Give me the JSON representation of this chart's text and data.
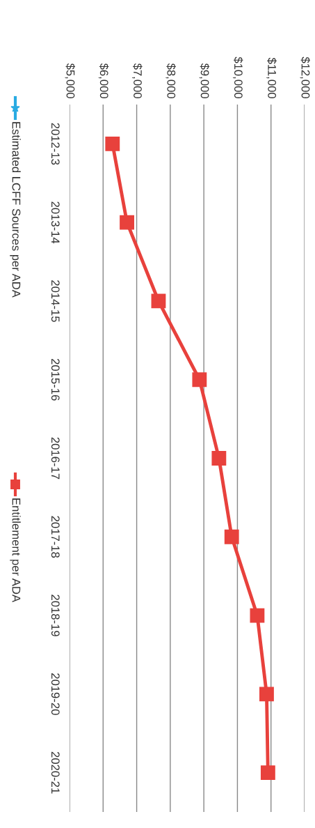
{
  "chart_data": {
    "type": "line",
    "orientation": "horizontal",
    "categories": [
      "2012-13",
      "2013-14",
      "2014-15",
      "2015-16",
      "2016-17",
      "2017-18",
      "2018-19",
      "2019-20",
      "2020-21"
    ],
    "series": [
      {
        "name": "Estimated LCFF Sources per ADA",
        "color": "#29abe2",
        "marker": "star",
        "values": [
          null,
          null,
          null,
          null,
          null,
          null,
          null,
          null,
          null
        ]
      },
      {
        "name": "Entitlement per ADA",
        "color": "#e8413c",
        "marker": "square",
        "values": [
          6280,
          6710,
          7650,
          8870,
          9450,
          9830,
          10590,
          10870,
          10910
        ]
      }
    ],
    "xlim": [
      5000,
      12000
    ],
    "xticks": [
      {
        "value": 5000,
        "label": "$5,000"
      },
      {
        "value": 6000,
        "label": "$6,000"
      },
      {
        "value": 7000,
        "label": "$7,000"
      },
      {
        "value": 8000,
        "label": "$8,000"
      },
      {
        "value": 9000,
        "label": "$9,000"
      },
      {
        "value": 10000,
        "label": "$10,000"
      },
      {
        "value": 11000,
        "label": "$11,000"
      },
      {
        "value": 12000,
        "label": "$12,000"
      }
    ],
    "grid": "x",
    "legend": "left",
    "line_style": "solid"
  }
}
